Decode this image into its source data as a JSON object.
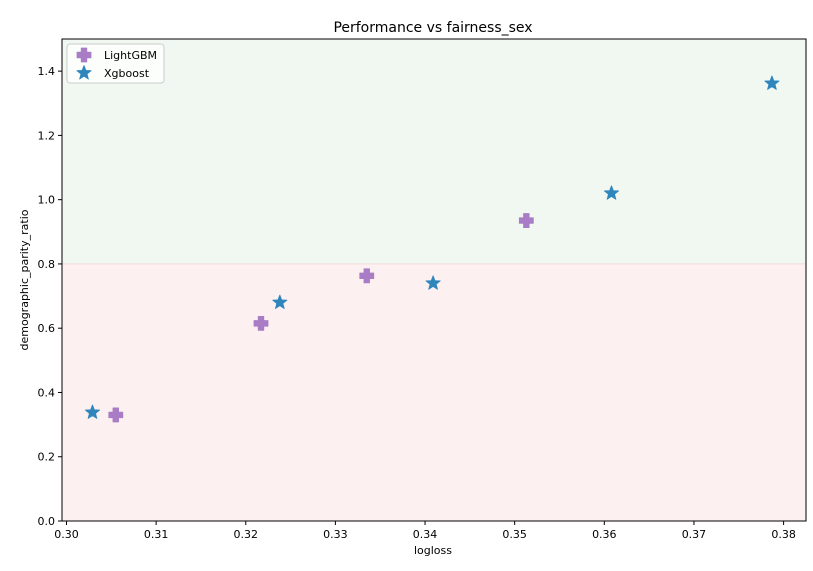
{
  "chart_data": {
    "type": "scatter",
    "title": "Performance vs fairness_sex",
    "xlabel": "logloss",
    "ylabel": "demographic_parity_ratio",
    "xlim": [
      0.2995,
      0.3825
    ],
    "ylim": [
      0.0,
      1.5
    ],
    "xticks": [
      0.3,
      0.31,
      0.32,
      0.33,
      0.34,
      0.35,
      0.36,
      0.37,
      0.38
    ],
    "xtick_labels": [
      "0.30",
      "0.31",
      "0.32",
      "0.33",
      "0.34",
      "0.35",
      "0.36",
      "0.37",
      "0.38"
    ],
    "yticks": [
      0.0,
      0.2,
      0.4,
      0.6,
      0.8,
      1.0,
      1.2,
      1.4
    ],
    "ytick_labels": [
      "0.0",
      "0.2",
      "0.4",
      "0.6",
      "0.8",
      "1.0",
      "1.2",
      "1.4"
    ],
    "regions": [
      {
        "from": 0.8,
        "to": 1.5,
        "color": "#f1f8f1"
      },
      {
        "from": 0.0,
        "to": 0.8,
        "color": "#fdf0f0"
      }
    ],
    "threshold": 0.8,
    "grid": false,
    "legend_position": "top-left",
    "series": [
      {
        "name": "LightGBM",
        "marker": "plus",
        "color": "#a87dc6",
        "points": [
          {
            "x": 0.3055,
            "y": 0.33
          },
          {
            "x": 0.3217,
            "y": 0.615
          },
          {
            "x": 0.3335,
            "y": 0.763
          },
          {
            "x": 0.3513,
            "y": 0.935
          }
        ]
      },
      {
        "name": "Xgboost",
        "marker": "star",
        "color": "#2f86bd",
        "points": [
          {
            "x": 0.3029,
            "y": 0.338
          },
          {
            "x": 0.3238,
            "y": 0.68
          },
          {
            "x": 0.3409,
            "y": 0.74
          },
          {
            "x": 0.3608,
            "y": 1.02
          },
          {
            "x": 0.3787,
            "y": 1.362
          }
        ]
      }
    ]
  }
}
